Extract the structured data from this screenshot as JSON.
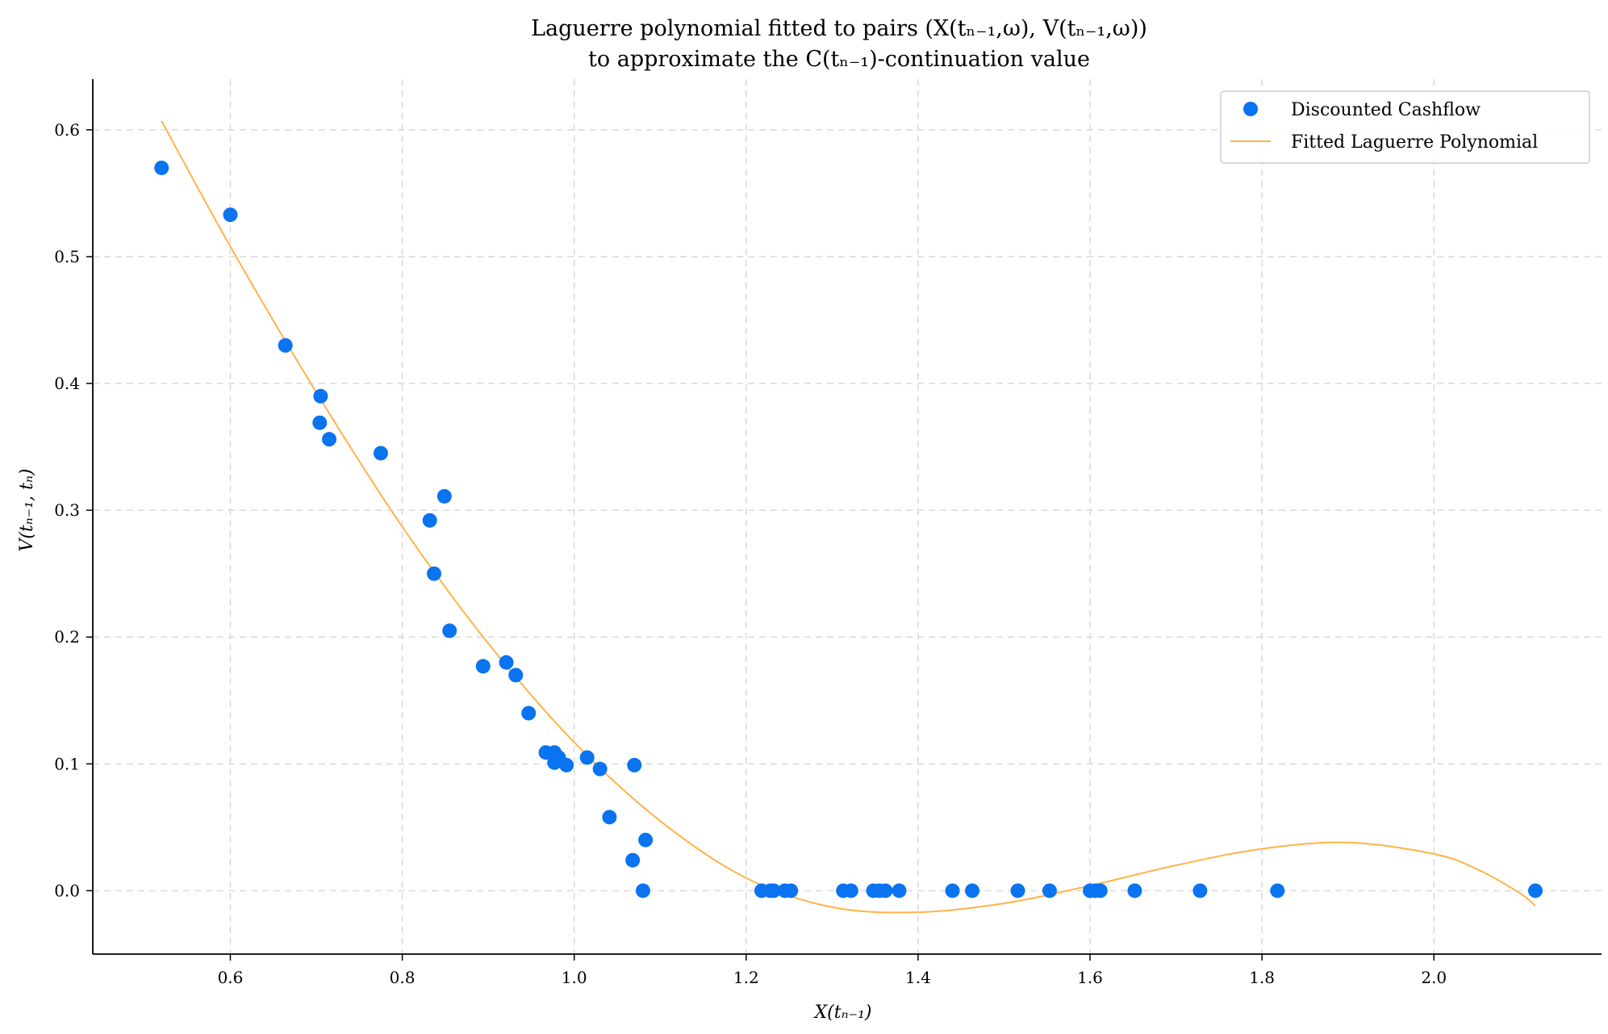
{
  "chart_data": {
    "type": "scatter",
    "title": "Laguerre polynomial fitted to pairs (X(tₙ₋₁,ω), V(tₙ₋₁,ω))",
    "subtitle": "to approximate the C(tₙ₋₁)-continuation value",
    "xlabel": "X(tₙ₋₁)",
    "ylabel": "V(tₙ₋₁, tₙ)",
    "xlim": [
      0.44,
      2.195
    ],
    "ylim": [
      -0.05,
      0.64
    ],
    "xticks": [
      0.6,
      0.8,
      1.0,
      1.2,
      1.4,
      1.6,
      1.8,
      2.0
    ],
    "xtick_labels": [
      "0.6",
      "0.8",
      "1.0",
      "1.2",
      "1.4",
      "1.6",
      "1.8",
      "2.0"
    ],
    "yticks": [
      0.0,
      0.1,
      0.2,
      0.3,
      0.4,
      0.5,
      0.6
    ],
    "ytick_labels": [
      "0.0",
      "0.1",
      "0.2",
      "0.3",
      "0.4",
      "0.5",
      "0.6"
    ],
    "grid": true,
    "legend_position": "top-right",
    "colors": {
      "scatter": "#0a73f0",
      "line": "#ffb347",
      "grid": "#d9d9d9"
    },
    "series": [
      {
        "name": "Discounted Cashflow",
        "kind": "scatter",
        "x": [
          0.52,
          0.6,
          0.664,
          0.705,
          0.704,
          0.715,
          0.775,
          0.832,
          0.849,
          0.837,
          0.855,
          0.894,
          0.921,
          0.932,
          0.947,
          0.967,
          0.977,
          0.977,
          0.982,
          0.991,
          1.015,
          1.03,
          1.041,
          1.07,
          1.068,
          1.083,
          1.08,
          1.218,
          1.228,
          1.232,
          1.245,
          1.252,
          1.313,
          1.322,
          1.348,
          1.355,
          1.362,
          1.378,
          1.44,
          1.463,
          1.516,
          1.553,
          1.6,
          1.606,
          1.612,
          1.652,
          1.728,
          1.818,
          2.118
        ],
        "y": [
          0.57,
          0.533,
          0.43,
          0.39,
          0.369,
          0.356,
          0.345,
          0.292,
          0.311,
          0.25,
          0.205,
          0.177,
          0.18,
          0.17,
          0.14,
          0.109,
          0.109,
          0.101,
          0.105,
          0.099,
          0.105,
          0.096,
          0.058,
          0.099,
          0.024,
          0.04,
          0.0,
          0.0,
          0.0,
          0.0,
          0.0,
          0.0,
          0.0,
          0.0,
          0.0,
          0.0,
          0.0,
          0.0,
          0.0,
          0.0,
          0.0,
          0.0,
          0.0,
          0.0,
          0.0,
          0.0,
          0.0,
          0.0,
          0.0
        ]
      },
      {
        "name": "Fitted Laguerre Polynomial",
        "kind": "line",
        "x": [
          0.52,
          0.6,
          0.7,
          0.8,
          0.9,
          1.0,
          1.1,
          1.2,
          1.3,
          1.4,
          1.5,
          1.6,
          1.7,
          1.8,
          1.9,
          2.0,
          2.05,
          2.1,
          2.118
        ],
        "y": [
          0.607,
          0.508,
          0.393,
          0.287,
          0.195,
          0.117,
          0.055,
          0.01,
          -0.013,
          -0.017,
          -0.01,
          0.004,
          0.02,
          0.033,
          0.038,
          0.029,
          0.017,
          -0.002,
          -0.012
        ]
      }
    ]
  }
}
